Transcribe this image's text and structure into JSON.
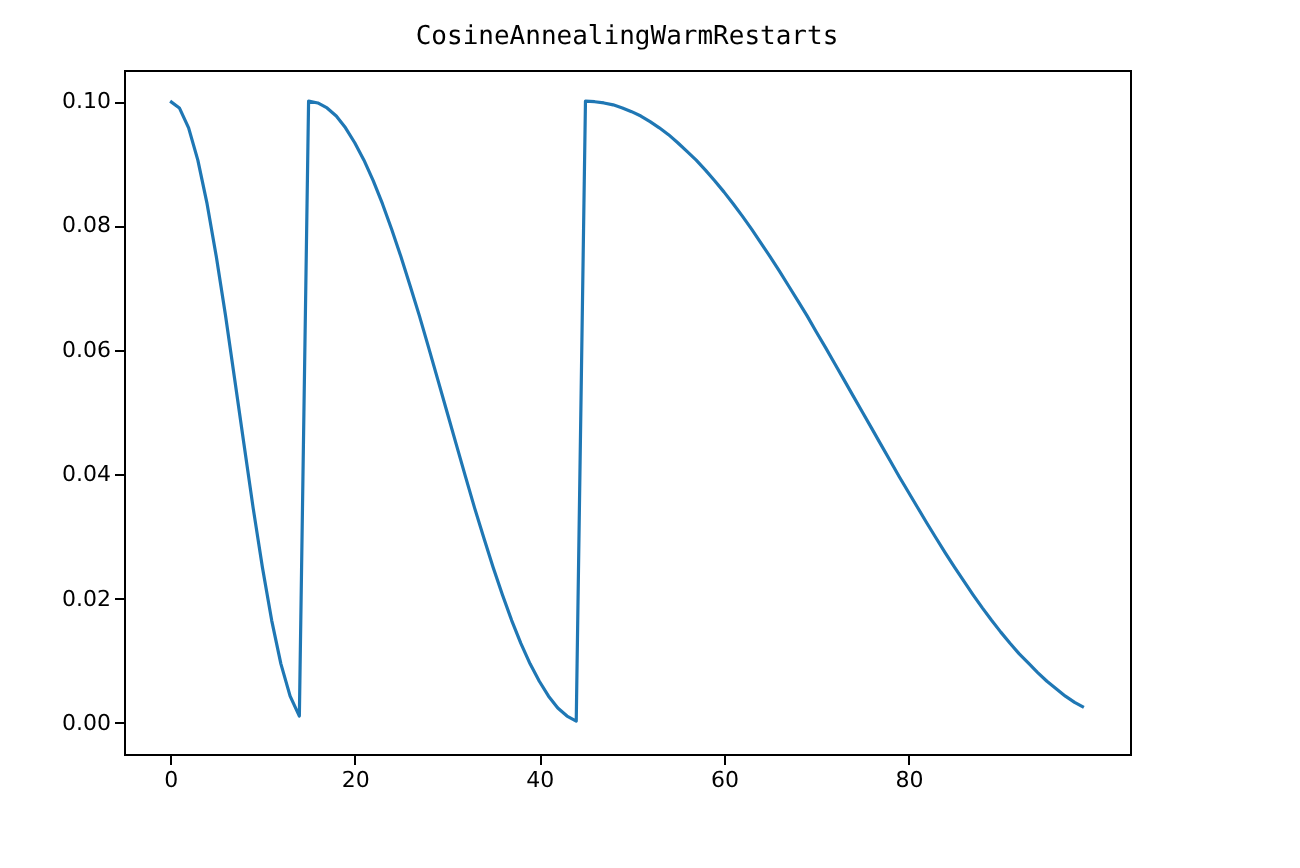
{
  "chart_data": {
    "type": "line",
    "title": "CosineAnnealingWarmRestarts",
    "x": [
      0,
      1,
      2,
      3,
      4,
      5,
      6,
      7,
      8,
      9,
      10,
      11,
      12,
      13,
      14,
      15,
      16,
      17,
      18,
      19,
      20,
      21,
      22,
      23,
      24,
      25,
      26,
      27,
      28,
      29,
      30,
      31,
      32,
      33,
      34,
      35,
      36,
      37,
      38,
      39,
      40,
      41,
      42,
      43,
      44,
      45,
      46,
      47,
      48,
      49,
      50,
      51,
      52,
      53,
      54,
      55,
      56,
      57,
      58,
      59,
      60,
      61,
      62,
      63,
      64,
      65,
      66,
      67,
      68,
      69,
      70,
      71,
      72,
      73,
      74,
      75,
      76,
      77,
      78,
      79,
      80,
      81,
      82,
      83,
      84,
      85,
      86,
      87,
      88,
      89,
      90,
      91,
      92,
      93,
      94,
      95,
      96,
      97,
      98,
      99
    ],
    "series": [
      {
        "color": "#1f77b4",
        "values": [
          0.1,
          0.0989,
          0.0957,
          0.0905,
          0.0835,
          0.075,
          0.0655,
          0.0552,
          0.0448,
          0.0345,
          0.025,
          0.0165,
          0.0095,
          0.0043,
          0.0011,
          0.1,
          0.0997,
          0.0989,
          0.0976,
          0.0957,
          0.0933,
          0.0905,
          0.0872,
          0.0835,
          0.0794,
          0.075,
          0.0703,
          0.0655,
          0.0604,
          0.0552,
          0.05,
          0.0448,
          0.0396,
          0.0345,
          0.0297,
          0.025,
          0.0206,
          0.0165,
          0.0128,
          0.0095,
          0.0067,
          0.0043,
          0.0024,
          0.0011,
          0.0003,
          0.1,
          0.0999,
          0.0997,
          0.0994,
          0.0989,
          0.0983,
          0.0976,
          0.0967,
          0.0957,
          0.0946,
          0.0933,
          0.0919,
          0.0905,
          0.0889,
          0.0872,
          0.0854,
          0.0835,
          0.0815,
          0.0794,
          0.0772,
          0.075,
          0.0727,
          0.0703,
          0.0679,
          0.0655,
          0.0629,
          0.0604,
          0.0578,
          0.0552,
          0.0526,
          0.05,
          0.0474,
          0.0448,
          0.0422,
          0.0396,
          0.0371,
          0.0346,
          0.0321,
          0.0297,
          0.0273,
          0.025,
          0.0228,
          0.0206,
          0.0185,
          0.0165,
          0.0146,
          0.0128,
          0.0111,
          0.0096,
          0.0081,
          0.0067,
          0.0055,
          0.0043,
          0.0033,
          0.0025
        ]
      }
    ],
    "xlim": [
      -5,
      104
    ],
    "xticks": [
      0,
      20,
      40,
      60,
      80
    ],
    "ylim": [
      -0.005,
      0.105
    ],
    "yticks": [
      {
        "value": 0,
        "label": "0.00"
      },
      {
        "value": 0.02,
        "label": "0.02"
      },
      {
        "value": 0.04,
        "label": "0.04"
      },
      {
        "value": 0.06,
        "label": "0.06"
      },
      {
        "value": 0.08,
        "label": "0.08"
      },
      {
        "value": 0.1,
        "label": "0.10"
      }
    ],
    "grid": false
  }
}
